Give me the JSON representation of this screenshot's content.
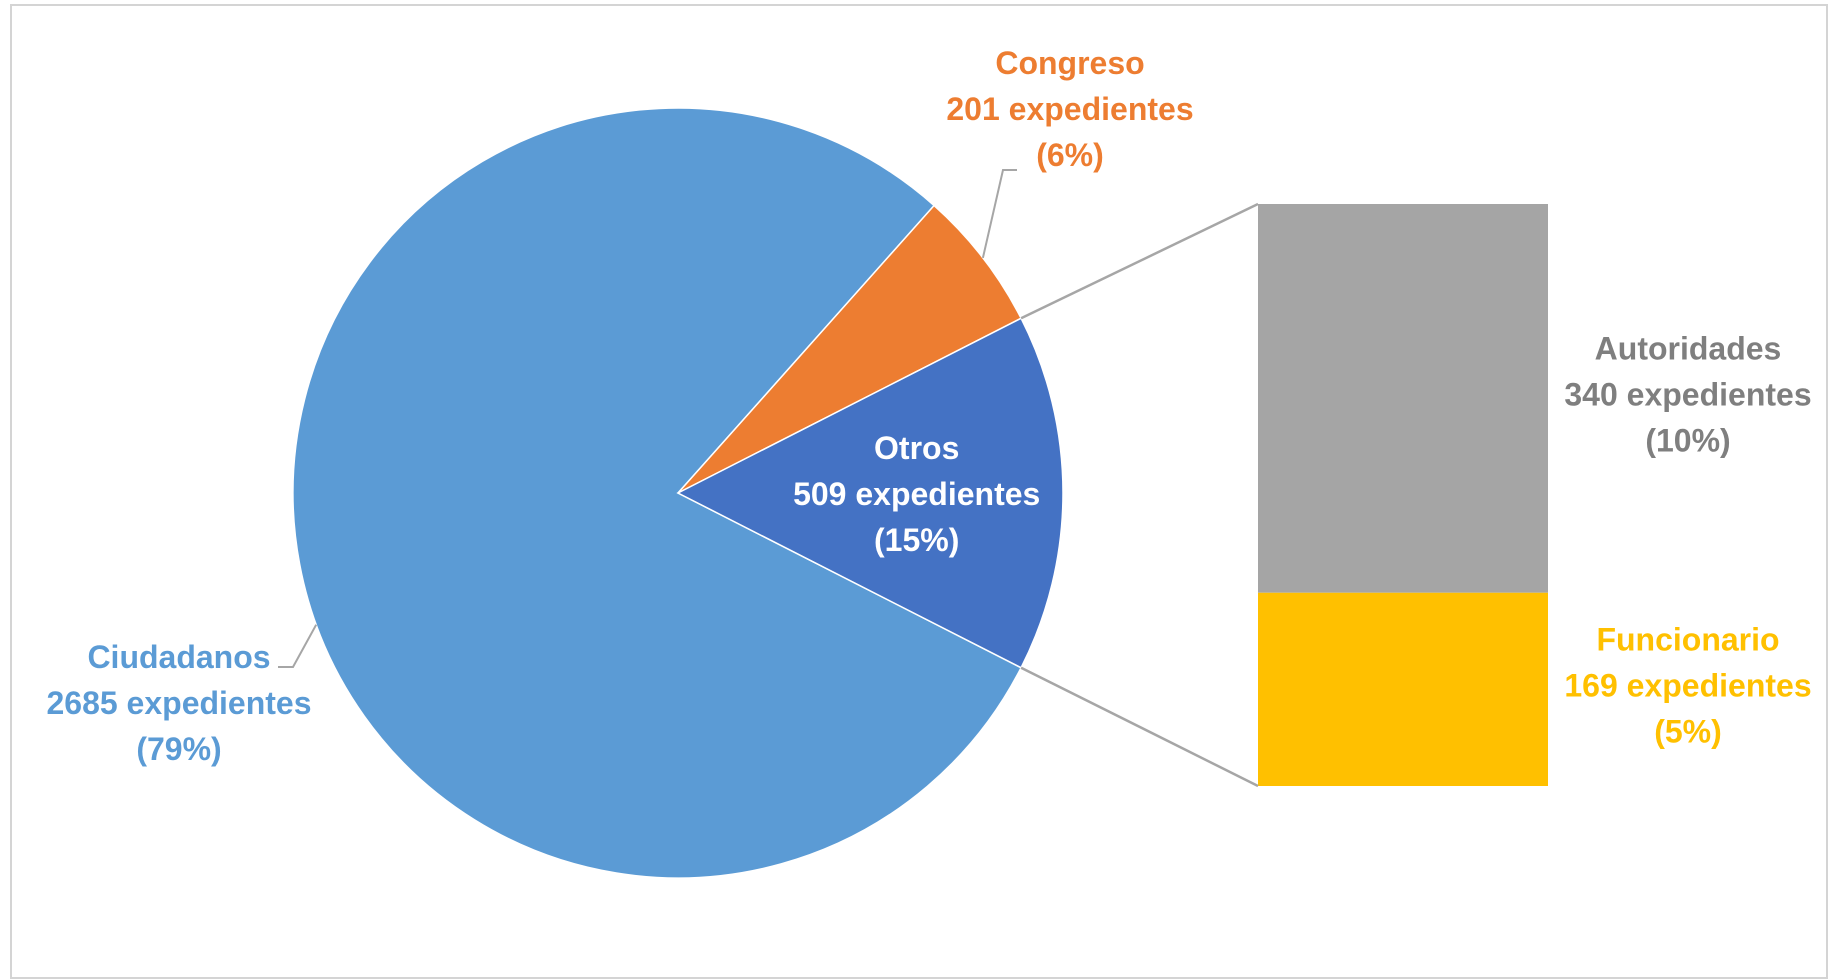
{
  "chart_data": {
    "type": "pie",
    "subtype": "pie-of-bar",
    "title": "",
    "unit_label": "expedientes",
    "slices": [
      {
        "name": "Ciudadanos",
        "value": 2685,
        "percent": "79%",
        "color": "#5B9BD5",
        "lines": [
          "Ciudadanos",
          "2685 expedientes",
          "(79%)"
        ]
      },
      {
        "name": "Congreso",
        "value": 201,
        "percent": "6%",
        "color": "#ED7D31",
        "lines": [
          "Congreso",
          "201 expedientes",
          "(6%)"
        ]
      },
      {
        "name": "Otros",
        "value": 509,
        "percent": "15%",
        "color": "#4472C4",
        "lines": [
          "Otros",
          "509 expedientes",
          "(15%)"
        ]
      }
    ],
    "breakdown_of": "Otros",
    "breakdown": [
      {
        "name": "Autoridades",
        "value": 340,
        "percent": "10%",
        "color": "#A5A5A5",
        "lines": [
          "Autoridades",
          "340 expedientes",
          "(10%)"
        ]
      },
      {
        "name": "Funcionario",
        "value": 169,
        "percent": "5%",
        "color": "#FFC000",
        "lines": [
          "Funcionario",
          "169 expedientes",
          "(5%)"
        ]
      }
    ],
    "legend": "none"
  }
}
